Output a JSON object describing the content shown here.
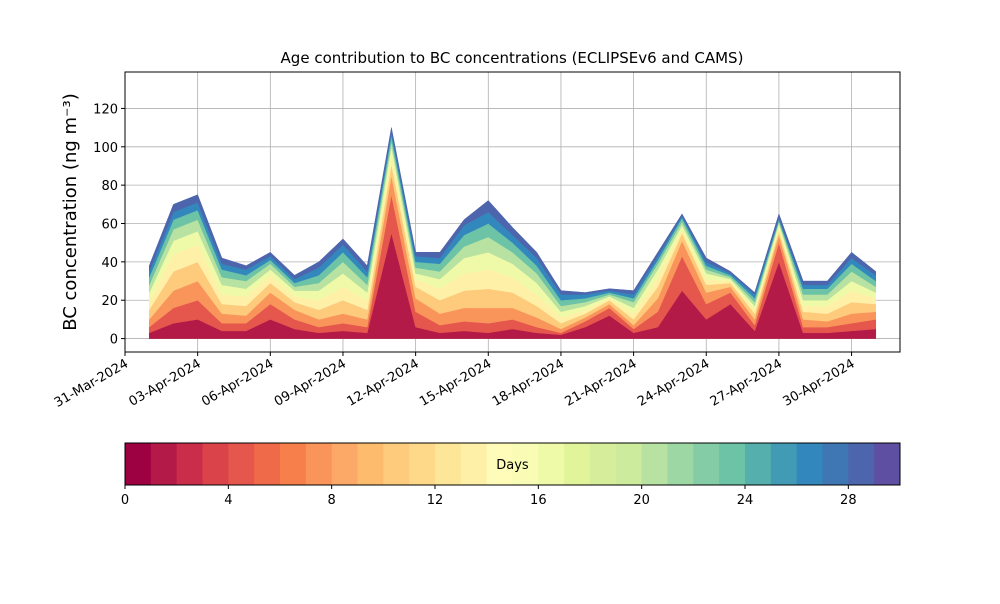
{
  "chart_data": {
    "type": "stacked-area",
    "title": "Age contribution to BC concentrations (ECLIPSEv6 and CAMS)",
    "y_label": "BC concentration (ng m⁻³)",
    "x": [
      "2024-04-01",
      "2024-04-02",
      "2024-04-03",
      "2024-04-04",
      "2024-04-05",
      "2024-04-06",
      "2024-04-07",
      "2024-04-08",
      "2024-04-09",
      "2024-04-10",
      "2024-04-11",
      "2024-04-12",
      "2024-04-13",
      "2024-04-14",
      "2024-04-15",
      "2024-04-16",
      "2024-04-17",
      "2024-04-18",
      "2024-04-19",
      "2024-04-20",
      "2024-04-21",
      "2024-04-22",
      "2024-04-23",
      "2024-04-24",
      "2024-04-25",
      "2024-04-26",
      "2024-04-27",
      "2024-04-28",
      "2024-04-29",
      "2024-04-30",
      "2024-05-01"
    ],
    "series": [
      {
        "color": "#b31a47",
        "values": [
          3,
          8,
          10,
          4,
          4,
          10,
          5,
          3,
          4,
          3,
          55,
          6,
          3,
          4,
          3,
          5,
          3,
          2,
          6,
          12,
          3,
          6,
          25,
          10,
          18,
          4,
          40,
          3,
          3,
          4,
          5
        ]
      },
      {
        "color": "#e5564d",
        "values": [
          3,
          8,
          10,
          4,
          4,
          8,
          5,
          3,
          4,
          3,
          20,
          8,
          4,
          5,
          5,
          5,
          3,
          1,
          3,
          4,
          2,
          8,
          18,
          8,
          6,
          3,
          10,
          3,
          3,
          4,
          5
        ]
      },
      {
        "color": "#f9955a",
        "values": [
          4,
          9,
          10,
          5,
          4,
          6,
          5,
          4,
          5,
          4,
          10,
          7,
          6,
          7,
          8,
          6,
          5,
          2,
          2,
          2,
          2,
          7,
          8,
          6,
          3,
          3,
          4,
          4,
          3,
          5,
          4
        ]
      },
      {
        "color": "#fdcb7b",
        "values": [
          5,
          10,
          10,
          5,
          5,
          5,
          4,
          5,
          7,
          5,
          6,
          6,
          7,
          9,
          10,
          8,
          6,
          3,
          2,
          2,
          3,
          6,
          4,
          4,
          2,
          3,
          2,
          4,
          4,
          6,
          4
        ]
      },
      {
        "color": "#fff0a8",
        "values": [
          5,
          9,
          9,
          5,
          5,
          4,
          3,
          5,
          7,
          5,
          5,
          4,
          6,
          9,
          10,
          8,
          6,
          3,
          2,
          1,
          3,
          5,
          2,
          3,
          1,
          2,
          2,
          3,
          4,
          6,
          3
        ]
      },
      {
        "color": "#effaa8",
        "values": [
          4,
          7,
          7,
          5,
          4,
          3,
          3,
          5,
          7,
          4,
          4,
          3,
          5,
          8,
          9,
          7,
          6,
          3,
          2,
          1,
          3,
          4,
          2,
          3,
          1,
          2,
          2,
          3,
          3,
          5,
          3
        ]
      },
      {
        "color": "#b7e2a1",
        "values": [
          4,
          6,
          6,
          4,
          4,
          3,
          2,
          4,
          6,
          4,
          3,
          3,
          4,
          6,
          8,
          6,
          5,
          3,
          2,
          1,
          3,
          3,
          2,
          2,
          1,
          2,
          1,
          3,
          3,
          5,
          3
        ]
      },
      {
        "color": "#6cc3a5",
        "values": [
          4,
          5,
          5,
          4,
          3,
          2,
          2,
          4,
          5,
          4,
          3,
          3,
          4,
          6,
          7,
          5,
          4,
          3,
          2,
          1,
          2,
          2,
          2,
          2,
          1,
          2,
          1,
          3,
          3,
          4,
          3
        ]
      },
      {
        "color": "#3288bd",
        "values": [
          3,
          4,
          4,
          3,
          3,
          2,
          2,
          4,
          4,
          3,
          2,
          3,
          3,
          5,
          6,
          4,
          4,
          3,
          2,
          1,
          2,
          2,
          1,
          2,
          1,
          2,
          1,
          2,
          2,
          3,
          3
        ]
      },
      {
        "color": "#4d65ac",
        "values": [
          3,
          4,
          4,
          3,
          2,
          2,
          2,
          3,
          3,
          3,
          2,
          2,
          3,
          3,
          6,
          4,
          3,
          2,
          1,
          1,
          2,
          2,
          1,
          2,
          1,
          1,
          2,
          2,
          2,
          3,
          2
        ]
      }
    ],
    "xlim": [
      "2024-03-31",
      "2024-05-02"
    ],
    "xticks": [
      {
        "value": "2024-03-31",
        "label": "31-Mar-2024"
      },
      {
        "value": "2024-04-03",
        "label": "03-Apr-2024"
      },
      {
        "value": "2024-04-06",
        "label": "06-Apr-2024"
      },
      {
        "value": "2024-04-09",
        "label": "09-Apr-2024"
      },
      {
        "value": "2024-04-12",
        "label": "12-Apr-2024"
      },
      {
        "value": "2024-04-15",
        "label": "15-Apr-2024"
      },
      {
        "value": "2024-04-18",
        "label": "18-Apr-2024"
      },
      {
        "value": "2024-04-21",
        "label": "21-Apr-2024"
      },
      {
        "value": "2024-04-24",
        "label": "24-Apr-2024"
      },
      {
        "value": "2024-04-27",
        "label": "27-Apr-2024"
      },
      {
        "value": "2024-04-30",
        "label": "30-Apr-2024"
      }
    ],
    "ylim": [
      -7,
      139
    ],
    "yticks": [
      0,
      20,
      40,
      60,
      80,
      100,
      120
    ],
    "grid": true,
    "colorbar": {
      "label": "Days",
      "lim": [
        0,
        30
      ],
      "ticks": [
        0,
        4,
        8,
        12,
        16,
        20,
        24,
        28
      ],
      "colors": [
        "#9e0142",
        "#b31a47",
        "#c92d4a",
        "#da434a",
        "#e5564d",
        "#ef6a48",
        "#f67f4b",
        "#f9955a",
        "#fca867",
        "#fdbb6d",
        "#fdcb7b",
        "#fed98a",
        "#fee699",
        "#fff0a8",
        "#fffbb8",
        "#f9fcb5",
        "#effaa8",
        "#e2f49a",
        "#d6ee9b",
        "#cdeb9d",
        "#b7e2a1",
        "#9dd7a4",
        "#83cca5",
        "#6cc3a5",
        "#55afad",
        "#429bb4",
        "#3288bd",
        "#3f76b4",
        "#4d65ac",
        "#5e4fa2"
      ]
    }
  }
}
